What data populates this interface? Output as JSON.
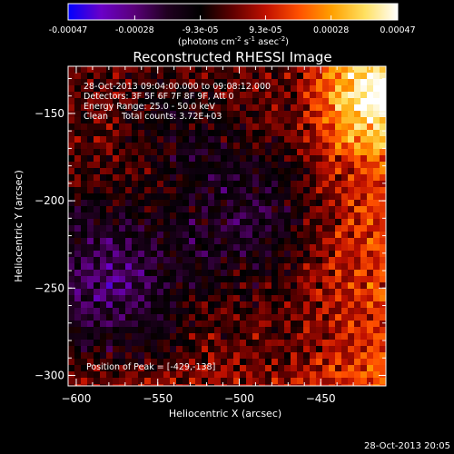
{
  "colorbar": {
    "tick_labels": [
      "-0.00047",
      "-0.00028",
      "-9.3e-05",
      "9.3e-05",
      "0.00028",
      "0.00047"
    ],
    "units_prefix": "(photons cm",
    "units_exp1": "-2",
    "units_mid": " s",
    "units_exp2": "-1",
    "units_mid2": " asec",
    "units_exp3": "-2",
    "units_suffix": ")",
    "stops": [
      "#0000ff",
      "#6a00c8",
      "#5a007a",
      "#200020",
      "#000000",
      "#600000",
      "#c01000",
      "#ff5000",
      "#ffa000",
      "#ffe060",
      "#ffffff"
    ]
  },
  "chart_data": {
    "type": "heatmap",
    "title": "Reconstructed RHESSI Image",
    "xlabel": "Heliocentric X (arcsec)",
    "ylabel": "Heliocentric Y (arcsec)",
    "xlim": [
      -605,
      -410
    ],
    "ylim": [
      -306,
      -123
    ],
    "x_ticks": [
      -600,
      -550,
      -500,
      -450
    ],
    "y_ticks": [
      -150,
      -200,
      -250,
      -300
    ],
    "value_range": [
      -0.00047,
      0.00047
    ],
    "peak": [
      -429,
      -138
    ],
    "annotations": [
      "28-Oct-2013 09:04:00.000 to 09:08:12.000",
      "Detectors: 3F 5F 6F 7F 8F 9F, Att 0",
      "Energy Range: 25.0 - 50.0 keV",
      "Clean     Total counts: 3.72E+03"
    ],
    "peak_label": "Position of Peak = [-429,-138]"
  },
  "timestamp": "28-Oct-2013 20:05"
}
